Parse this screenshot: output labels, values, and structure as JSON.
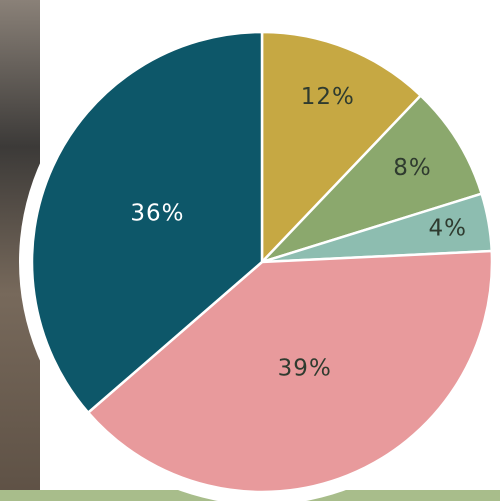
{
  "chart_data": {
    "type": "pie",
    "values": [
      12,
      8,
      4,
      39,
      36
    ],
    "value_labels": [
      "12%",
      "8%",
      "4%",
      "39%",
      "36%"
    ],
    "colors": [
      "#c6a843",
      "#8ba86d",
      "#8dbdb0",
      "#e89a9c",
      "#0d5769"
    ],
    "label_colors": [
      "#2f3b2f",
      "#2f3b2f",
      "#2f3b2f",
      "#2f3b2f",
      "#ffffff"
    ]
  }
}
